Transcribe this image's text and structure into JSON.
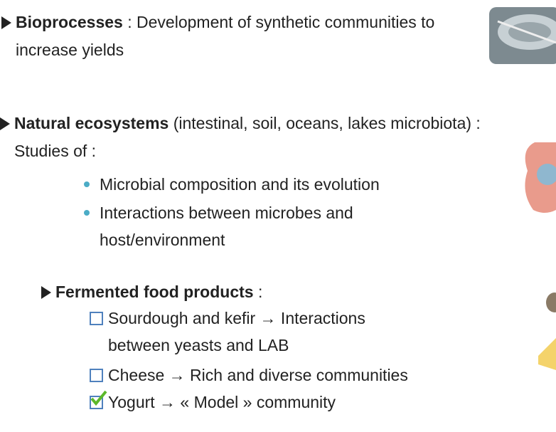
{
  "sections": [
    {
      "heading": "Bioprocesses",
      "text": " : Development of synthetic communities to increase yields",
      "items": []
    },
    {
      "heading": "Natural ecosystems",
      "text": " (intestinal, soil, oceans, lakes microbiota) : Studies of :",
      "items": [
        "Microbial composition and its evolution",
        "Interactions between microbes and host/environment"
      ]
    },
    {
      "heading": "Fermented food products",
      "text": " :",
      "items": [
        "Sourdough and kefir → Interactions between yeasts and LAB",
        "Cheese → Rich and diverse communities",
        "Yogurt → « Model » community"
      ]
    }
  ]
}
